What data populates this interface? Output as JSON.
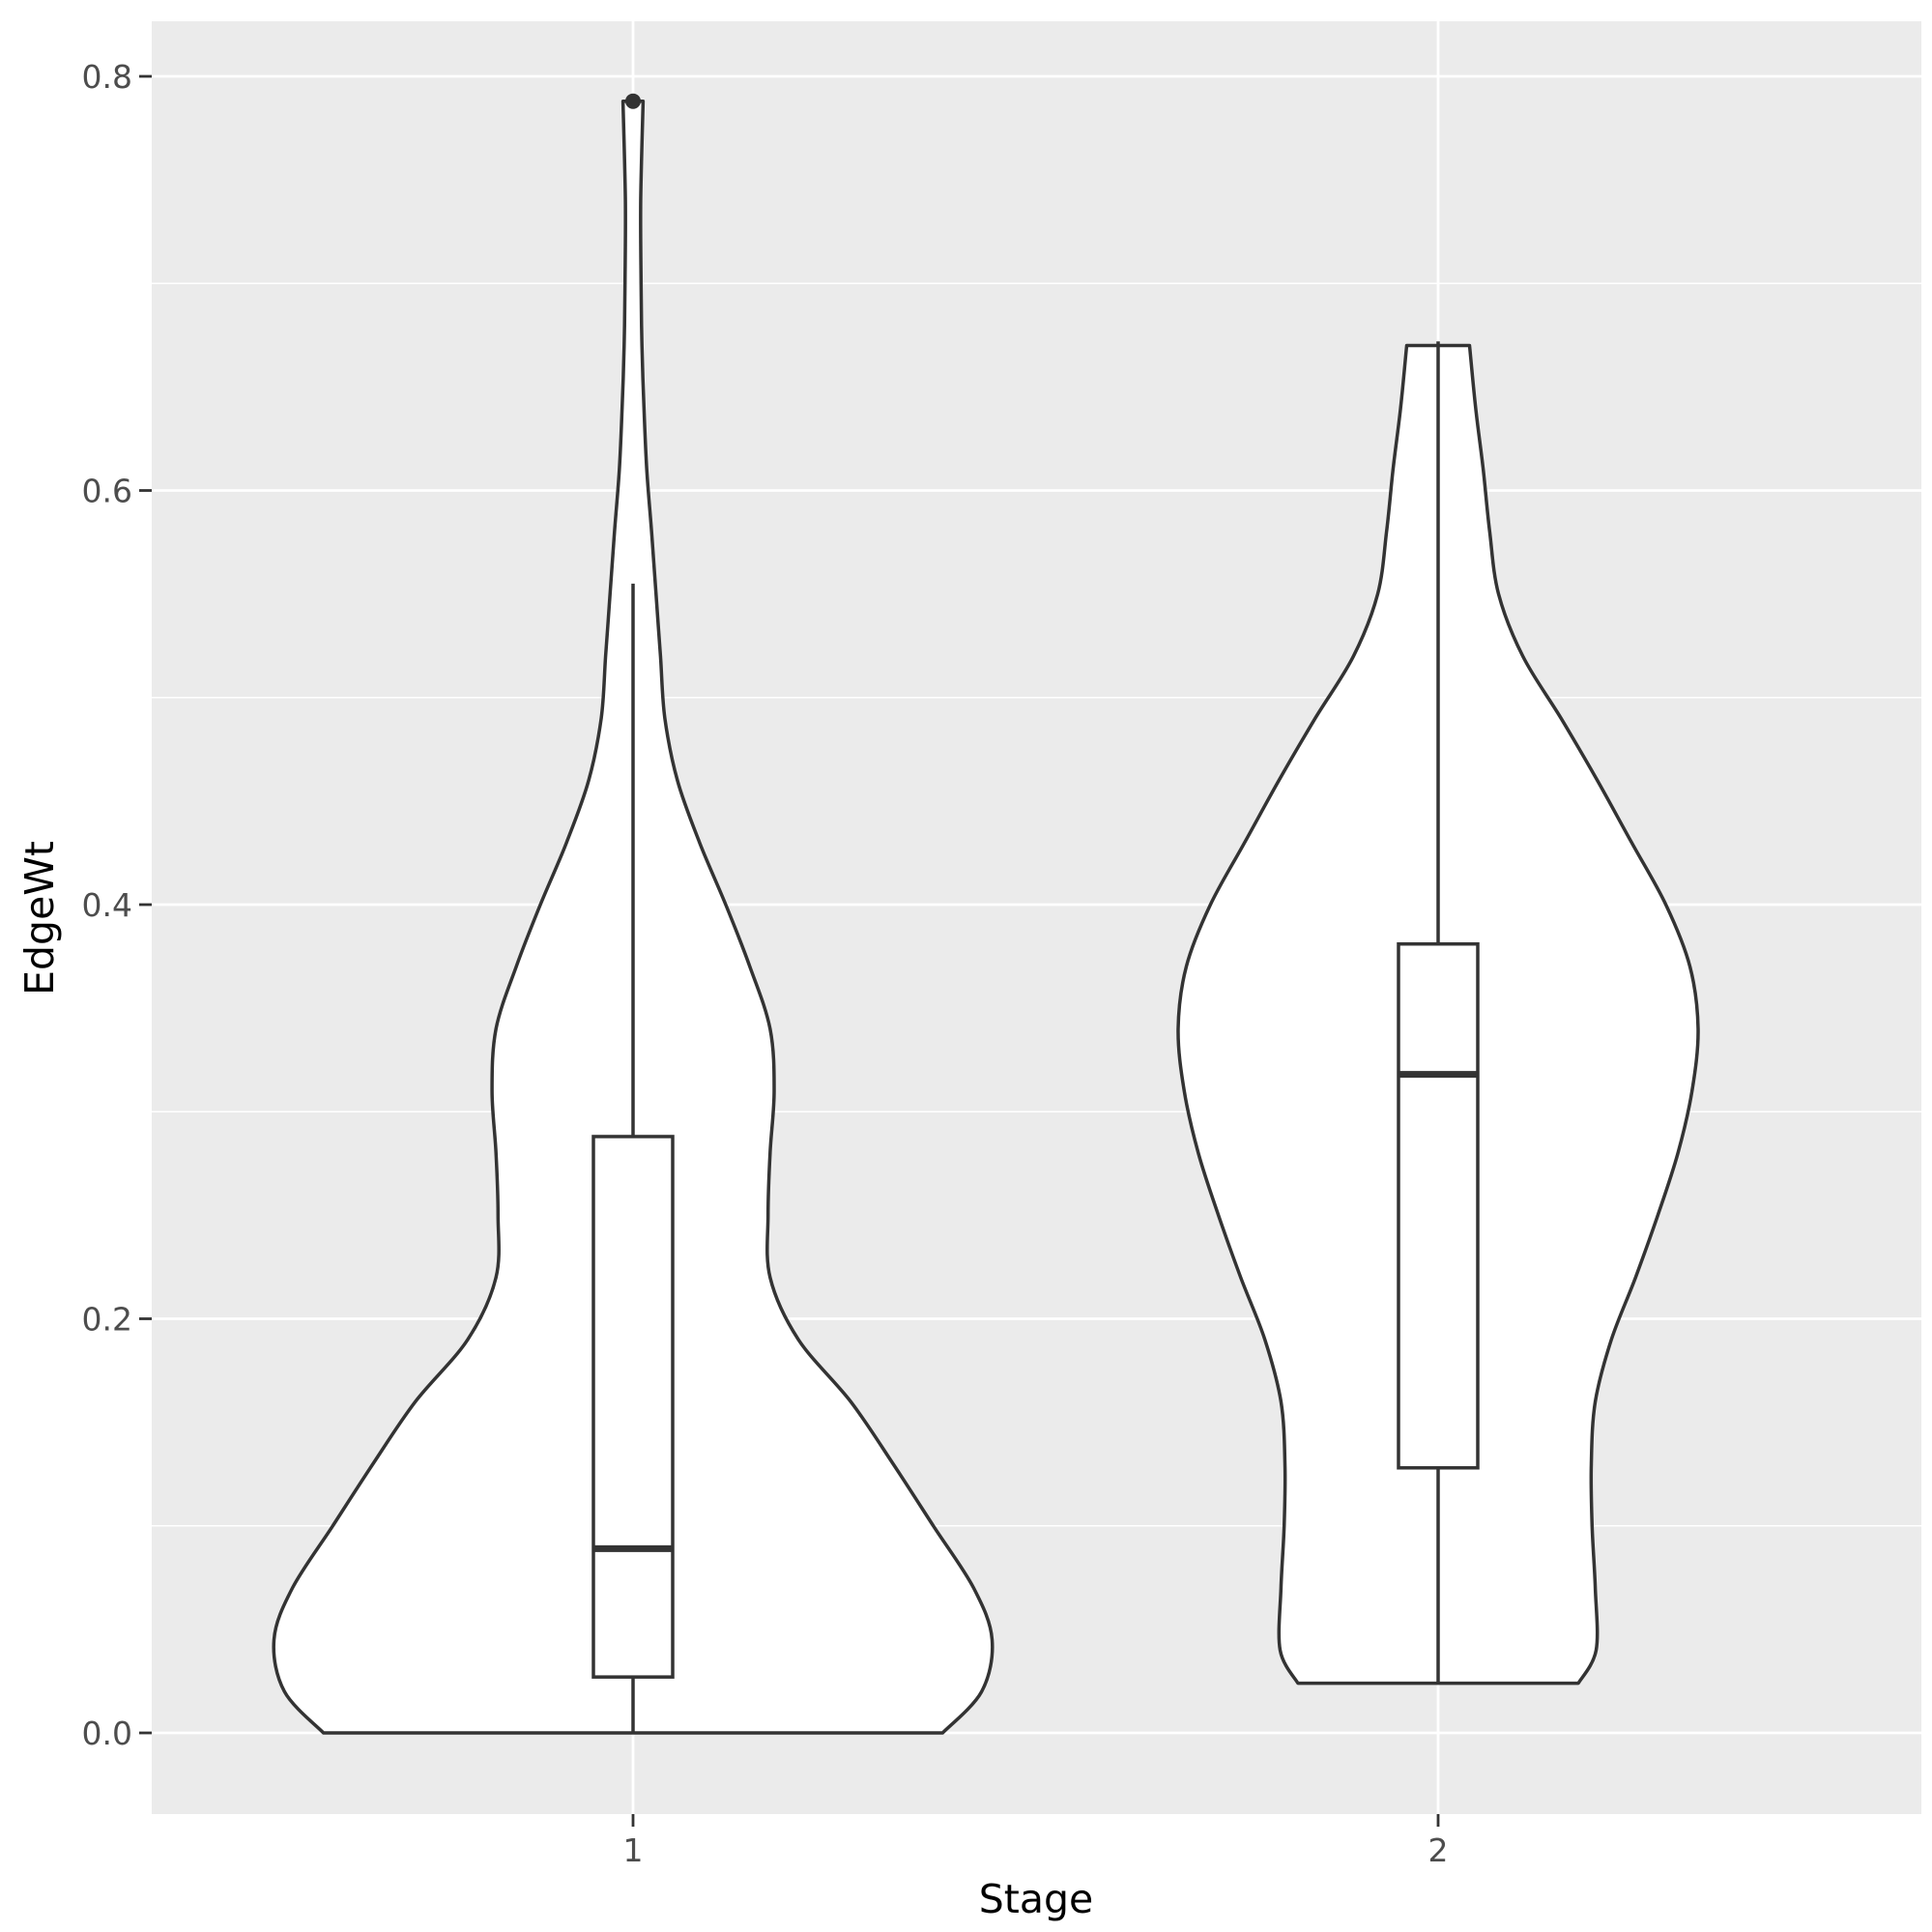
{
  "chart_data": {
    "type": "violin",
    "title": "",
    "xlabel": "Stage",
    "ylabel": "EdgeWt",
    "categories": [
      "1",
      "2"
    ],
    "ylim": [
      -0.04,
      0.826
    ],
    "y_ticks": [
      0.0,
      0.2,
      0.4,
      0.6,
      0.8
    ],
    "y_tick_labels": [
      "0.0",
      "0.2",
      "0.4",
      "0.6",
      "0.8"
    ],
    "y_minor_ticks": [
      0.1,
      0.3,
      0.5,
      0.7
    ],
    "grid": true,
    "legend": "none",
    "colors": {
      "panel": "#ebebeb",
      "grid": "#ffffff",
      "outline": "#333333",
      "fill": "#ffffff",
      "tick_text": "#4d4d4d"
    },
    "series": [
      {
        "category": "1",
        "violin": {
          "y": [
            0.0,
            0.02,
            0.045,
            0.07,
            0.1,
            0.13,
            0.16,
            0.19,
            0.22,
            0.25,
            0.28,
            0.31,
            0.34,
            0.37,
            0.4,
            0.43,
            0.46,
            0.49,
            0.52,
            0.55,
            0.58,
            0.61,
            0.64,
            0.67,
            0.7,
            0.74,
            0.788
          ],
          "width": [
            0.768,
            0.865,
            0.891,
            0.845,
            0.745,
            0.645,
            0.54,
            0.41,
            0.34,
            0.335,
            0.34,
            0.35,
            0.34,
            0.29,
            0.23,
            0.165,
            0.11,
            0.079,
            0.068,
            0.057,
            0.046,
            0.034,
            0.027,
            0.022,
            0.02,
            0.019,
            0.025
          ]
        },
        "box": {
          "lower": 0.0,
          "q1": 0.027,
          "median": 0.089,
          "q3": 0.288,
          "upper": 0.555
        },
        "outliers": [
          0.788
        ]
      },
      {
        "category": "2",
        "violin": {
          "y": [
            0.024,
            0.04,
            0.07,
            0.1,
            0.13,
            0.16,
            0.19,
            0.22,
            0.25,
            0.28,
            0.31,
            0.34,
            0.37,
            0.4,
            0.43,
            0.46,
            0.49,
            0.52,
            0.55,
            0.58,
            0.61,
            0.64,
            0.67
          ],
          "width": [
            0.348,
            0.392,
            0.39,
            0.382,
            0.38,
            0.39,
            0.43,
            0.49,
            0.545,
            0.595,
            0.63,
            0.645,
            0.625,
            0.565,
            0.48,
            0.395,
            0.305,
            0.21,
            0.15,
            0.128,
            0.112,
            0.093,
            0.078
          ]
        },
        "box": {
          "lower": 0.024,
          "q1": 0.128,
          "median": 0.318,
          "q3": 0.381,
          "upper": 0.672
        },
        "outliers": []
      }
    ]
  }
}
